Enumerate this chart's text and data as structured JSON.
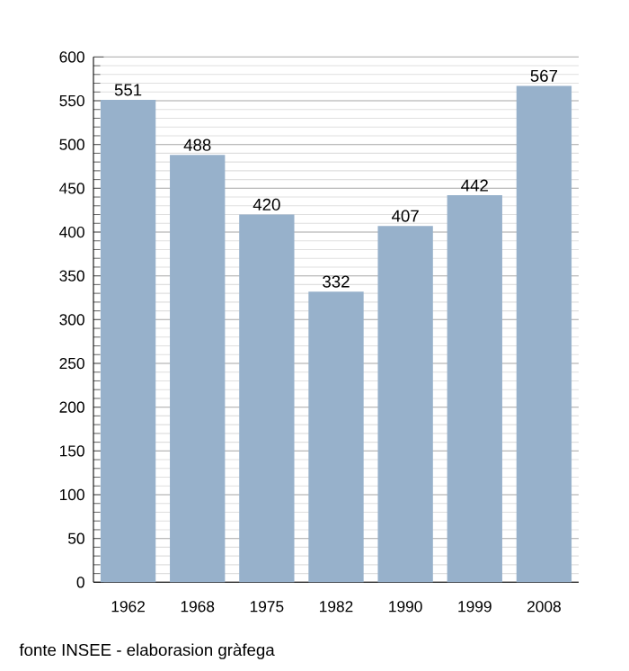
{
  "chart_data": {
    "type": "bar",
    "categories": [
      "1962",
      "1968",
      "1975",
      "1982",
      "1990",
      "1999",
      "2008"
    ],
    "values": [
      551,
      488,
      420,
      332,
      407,
      442,
      567
    ],
    "color": "#97b1cb",
    "ylim": [
      0,
      600
    ],
    "yticks": [
      0,
      50,
      100,
      150,
      200,
      250,
      300,
      350,
      400,
      450,
      500,
      550,
      600
    ],
    "grid": "y",
    "data_labels": true,
    "annotations": [
      "fonte INSEE - elaborasion gràfega"
    ]
  }
}
